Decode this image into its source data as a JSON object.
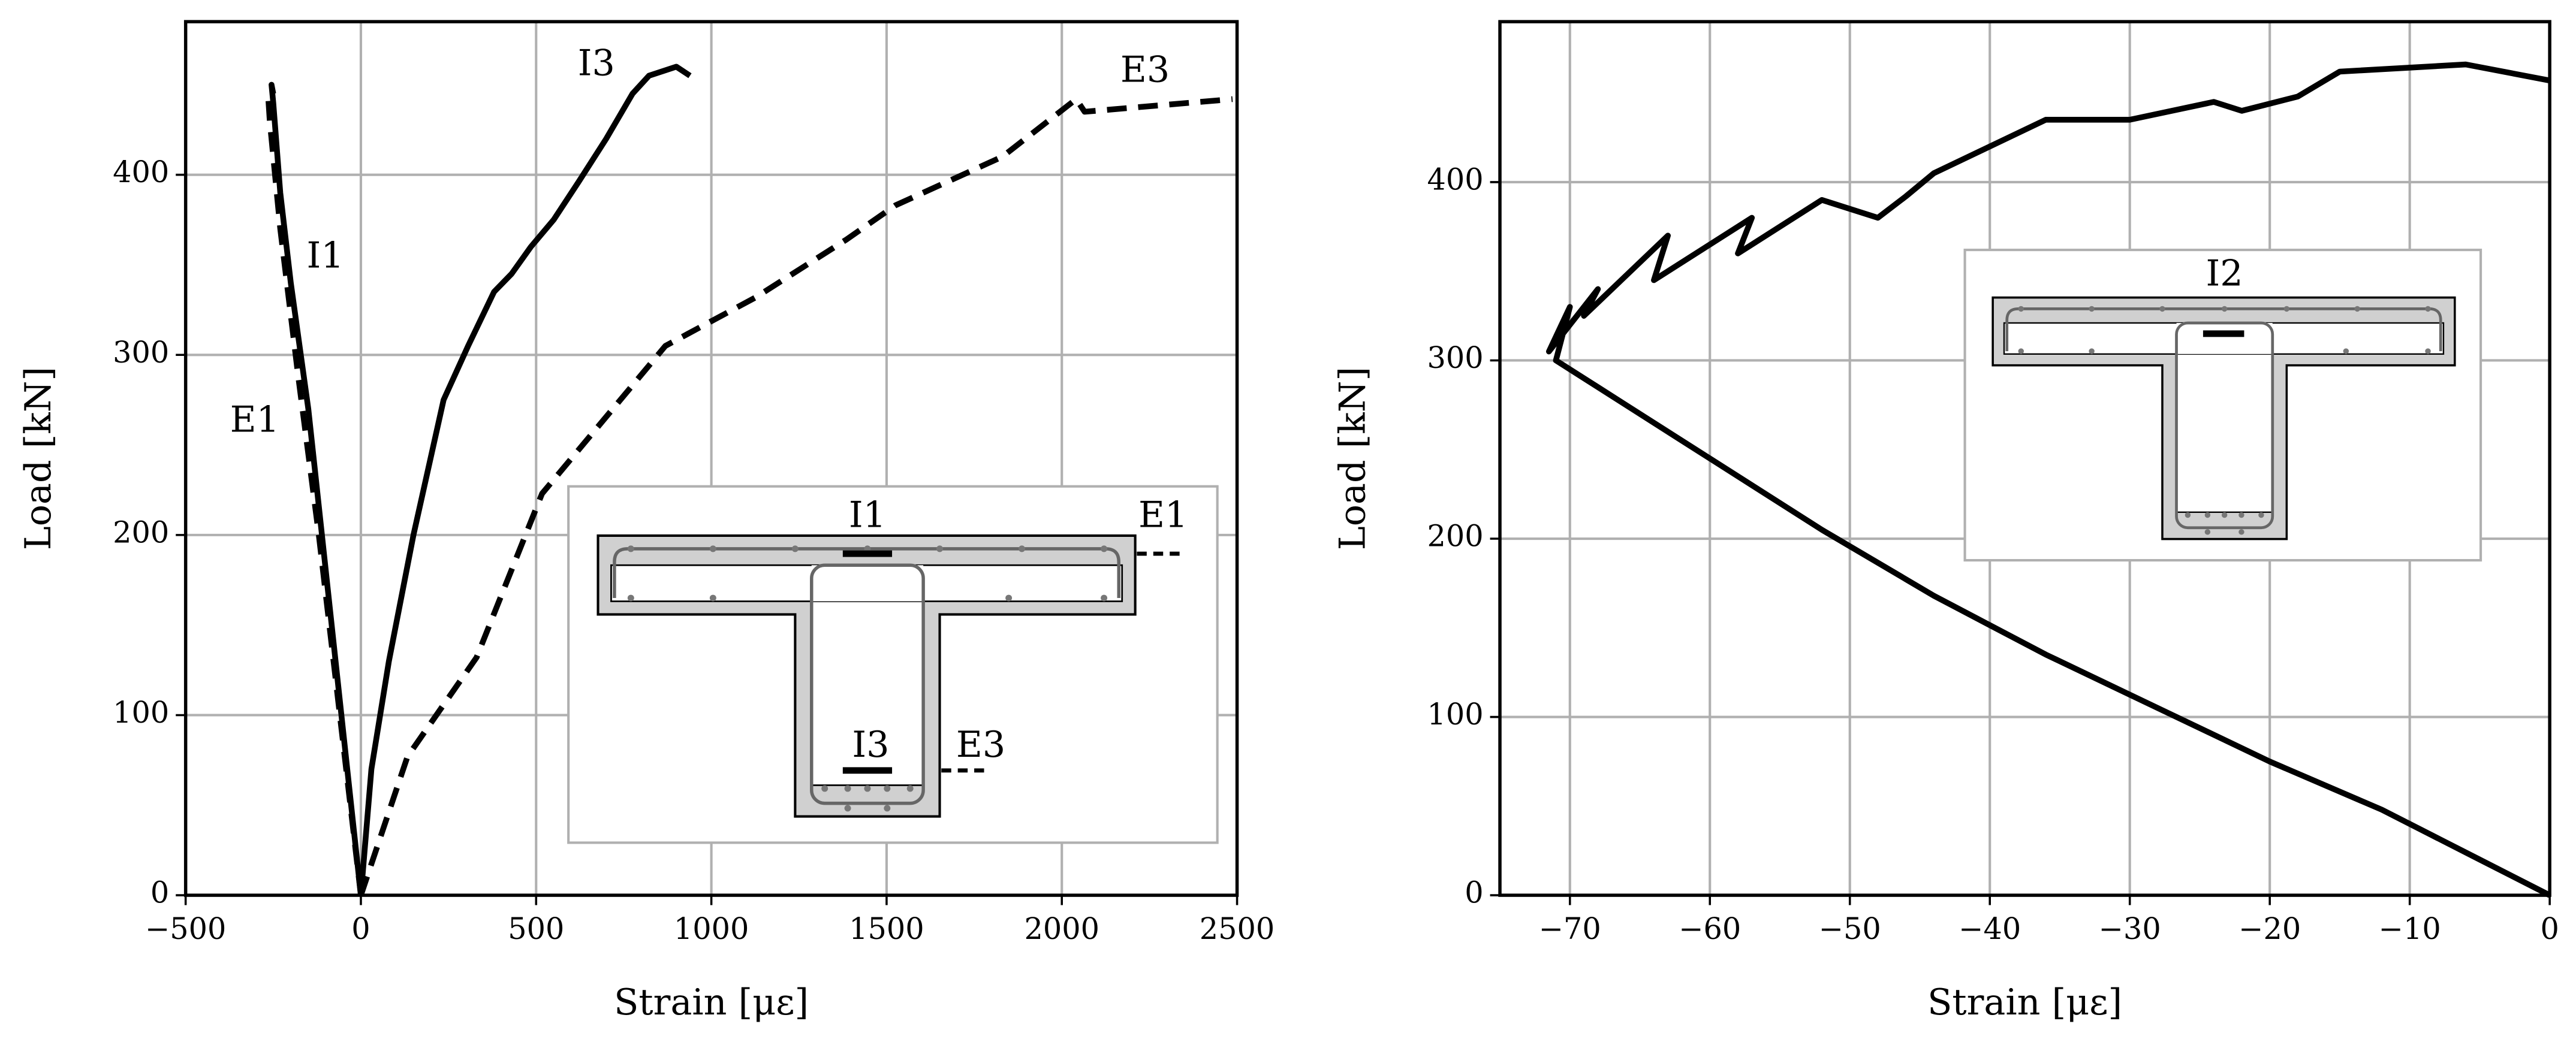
{
  "chart_data": [
    {
      "type": "line",
      "xlabel": "Strain [με]",
      "ylabel": "Load [kN]",
      "xlim": [
        -500,
        2500
      ],
      "ylim": [
        0,
        485
      ],
      "xticks": [
        {
          "value": -500,
          "label": "−500"
        },
        0,
        500,
        1000,
        1500,
        2000,
        2500
      ],
      "yticks": [
        0,
        100,
        200,
        300,
        400
      ],
      "grid": true,
      "series": [
        {
          "color": "#000000",
          "dashed": false,
          "x": [
            0,
            -50,
            -100,
            -150,
            -200,
            -230,
            -250,
            -255,
            -250
          ],
          "values": [
            0,
            90,
            180,
            270,
            340,
            390,
            440,
            450,
            445
          ]
        },
        {
          "color": "#000000",
          "dashed": true,
          "x": [
            0,
            -60,
            -120,
            -180,
            -230,
            -260,
            -265
          ],
          "values": [
            0,
            100,
            200,
            290,
            370,
            430,
            445
          ]
        },
        {
          "color": "#000000",
          "dashed": false,
          "x": [
            0,
            30,
            80,
            150,
            236,
            306,
            380,
            430,
            485,
            550,
            621,
            700,
            775,
            822,
            900,
            939
          ],
          "values": [
            0,
            70,
            130,
            200,
            275,
            305,
            335,
            345,
            360,
            375,
            396,
            420,
            445,
            455,
            460,
            455
          ]
        },
        {
          "color": "#000000",
          "dashed": true,
          "x": [
            0,
            133,
            330,
            517,
            869,
            1127,
            1385,
            1525,
            1830,
            2041,
            2065,
            2487
          ],
          "values": [
            0,
            77,
            132,
            223,
            305,
            332,
            364,
            383,
            410,
            442,
            435,
            442
          ]
        }
      ],
      "annotations": [
        "I1",
        "E1",
        "I3",
        "E3",
        "I1",
        "E1",
        "I3",
        "E3"
      ]
    },
    {
      "type": "line",
      "xlabel": "Strain [με]",
      "ylabel": "Load [kN]",
      "xlim": [
        -75,
        0
      ],
      "ylim": [
        0,
        490
      ],
      "xticks": [
        {
          "value": -70,
          "label": "−70"
        },
        {
          "value": -60,
          "label": "−60"
        },
        {
          "value": -50,
          "label": "−50"
        },
        {
          "value": -40,
          "label": "−40"
        },
        {
          "value": -30,
          "label": "−30"
        },
        {
          "value": -20,
          "label": "−20"
        },
        {
          "value": -10,
          "label": "−10"
        },
        0
      ],
      "yticks": [
        0,
        100,
        200,
        300,
        400
      ],
      "grid": true,
      "series": [
        {
          "color": "#000000",
          "dashed": false,
          "x": [
            0,
            -5,
            -12,
            -20,
            -28,
            -36,
            -44,
            -52,
            -60,
            -66,
            -71,
            -70,
            -71.5,
            -68,
            -69,
            -63,
            -64,
            -57,
            -58,
            -52,
            -48,
            -46,
            -44,
            -36,
            -30,
            -24,
            -22,
            -18,
            -15,
            -6,
            0
          ],
          "values": [
            0,
            20,
            48,
            75,
            105,
            135,
            168,
            205,
            245,
            275,
            300,
            330,
            305,
            340,
            325,
            370,
            345,
            380,
            360,
            390,
            380,
            392,
            405,
            435,
            435,
            445,
            440,
            448,
            462,
            466,
            457
          ]
        }
      ],
      "annotations": [
        "I2"
      ]
    }
  ]
}
